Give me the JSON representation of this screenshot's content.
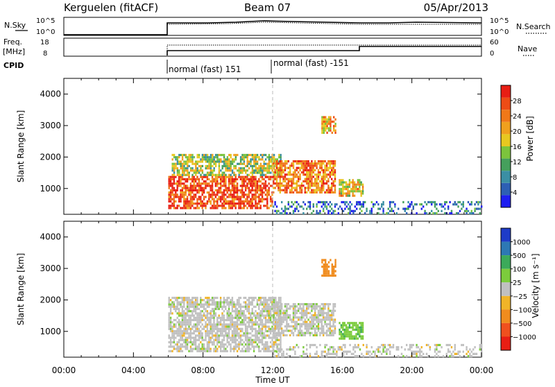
{
  "header": {
    "station": "Kerguelen (fitACF)",
    "beam": "Beam 07",
    "date": "05/Apr/2013"
  },
  "top_panels": {
    "nsky_label": "N.Sky",
    "nsearch_label": "N.Search",
    "noise_ticks": [
      "10^5",
      "10^0"
    ],
    "freq_label": "Freq.",
    "freq_unit": "[MHz]",
    "freq_ticks": [
      "18",
      "8"
    ],
    "nave_label": "Nave",
    "nave_ticks": [
      "60",
      "0"
    ],
    "cpid_label": "CPID",
    "cpid_segments": [
      "normal (fast) 151",
      "normal (fast) -151"
    ]
  },
  "chart_data": [
    {
      "type": "heatmap",
      "name": "power-panel",
      "ylabel": "Slant Range [km]",
      "xlabel": "",
      "x_ticks": [
        "00:00",
        "04:00",
        "08:00",
        "12:00",
        "16:00",
        "20:00",
        "00:00"
      ],
      "y_ticks": [
        1000,
        2000,
        3000,
        4000
      ],
      "xlim_hours": [
        0,
        24
      ],
      "ylim_km": [
        180,
        4500
      ],
      "colorbar": {
        "label": "Power [dB]",
        "ticks": [
          "4",
          "8",
          "12",
          "16",
          "20",
          "24",
          "28"
        ],
        "range": [
          0,
          30
        ],
        "colors": [
          "#1e1ef0",
          "#2d5fb4",
          "#3b8fa4",
          "#45a05c",
          "#7cc43c",
          "#e8c820",
          "#f0a01e",
          "#f07818",
          "#ee4c16",
          "#e81e14"
        ]
      },
      "echo_regions": [
        {
          "t_start": 6.0,
          "t_end": 12.0,
          "r_start": 400,
          "r_end": 1400,
          "power_db": 26
        },
        {
          "t_start": 6.2,
          "t_end": 12.5,
          "r_start": 1400,
          "r_end": 2100,
          "power_db": 14
        },
        {
          "t_start": 12.0,
          "t_end": 15.6,
          "r_start": 900,
          "r_end": 1900,
          "power_db": 22
        },
        {
          "t_start": 15.8,
          "t_end": 17.2,
          "r_start": 800,
          "r_end": 1300,
          "power_db": 18
        },
        {
          "t_start": 14.8,
          "t_end": 15.6,
          "r_start": 2800,
          "r_end": 3300,
          "power_db": 20
        },
        {
          "t_start": 12.0,
          "t_end": 24.0,
          "r_start": 180,
          "r_end": 600,
          "power_db": 6
        }
      ]
    },
    {
      "type": "heatmap",
      "name": "velocity-panel",
      "ylabel": "Slant Range [km]",
      "xlabel": "Time UT",
      "x_ticks": [
        "00:00",
        "04:00",
        "08:00",
        "12:00",
        "16:00",
        "20:00",
        "00:00"
      ],
      "y_ticks": [
        1000,
        2000,
        3000,
        4000
      ],
      "xlim_hours": [
        0,
        24
      ],
      "ylim_km": [
        180,
        4500
      ],
      "colorbar": {
        "label": "Velocity [m s⁻¹]",
        "ticks": [
          "1000",
          "500",
          "100",
          "25",
          "−25",
          "−100",
          "−500",
          "−1000"
        ],
        "colors": [
          "#1e3cc8",
          "#2d78b4",
          "#3caa5a",
          "#7ccc3c",
          "#c0c0c0",
          "#f0b428",
          "#f08c1e",
          "#f0501e",
          "#e81e14"
        ]
      },
      "echo_regions": [
        {
          "t_start": 6.0,
          "t_end": 12.5,
          "r_start": 400,
          "r_end": 2100,
          "velocity": 0
        },
        {
          "t_start": 12.0,
          "t_end": 15.6,
          "r_start": 900,
          "r_end": 1900,
          "velocity": 0
        },
        {
          "t_start": 15.8,
          "t_end": 17.2,
          "r_start": 800,
          "r_end": 1300,
          "velocity": 80
        },
        {
          "t_start": 14.8,
          "t_end": 15.6,
          "r_start": 2800,
          "r_end": 3300,
          "velocity": -300
        },
        {
          "t_start": 12.0,
          "t_end": 24.0,
          "r_start": 180,
          "r_end": 600,
          "velocity": 0
        }
      ]
    }
  ]
}
